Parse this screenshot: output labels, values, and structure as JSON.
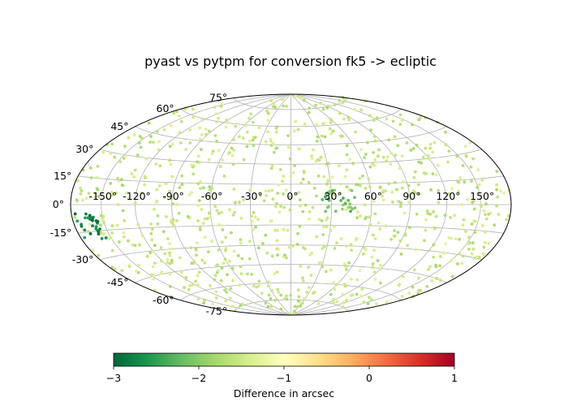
{
  "chart_data": {
    "type": "scatter",
    "projection": "hammer",
    "title": "pyast vs pytpm for conversion fk5 -> ecliptic",
    "lon_tick_labels": [
      "-150°",
      "-120°",
      "-90°",
      "-60°",
      "-30°",
      "0°",
      "30°",
      "60°",
      "90°",
      "120°",
      "150°"
    ],
    "lat_tick_labels": [
      "-75°",
      "-60°",
      "-45°",
      "-30°",
      "-15°",
      "0°",
      "15°",
      "30°",
      "45°",
      "60°",
      "75°"
    ],
    "grid": true,
    "colorbar": {
      "label": "Difference in arcsec",
      "range": [
        -3,
        1
      ],
      "ticks": [
        "−3",
        "−2",
        "−1",
        "0",
        "1"
      ],
      "colormap": "RdYlGn_r",
      "orientation": "horizontal",
      "location": "bottom"
    },
    "marker_color_typical": "#c5e584",
    "value_typical": -1.55,
    "clusters": [
      {
        "lon": 35,
        "lat": 3,
        "value_range": [
          -2.4,
          -1.9
        ],
        "note_region": "low-latitude cluster"
      },
      {
        "lon": -165,
        "lat": -12,
        "value_range": [
          -3.0,
          -2.5
        ],
        "note_region": "low-latitude cluster"
      }
    ],
    "point_count": 900
  }
}
